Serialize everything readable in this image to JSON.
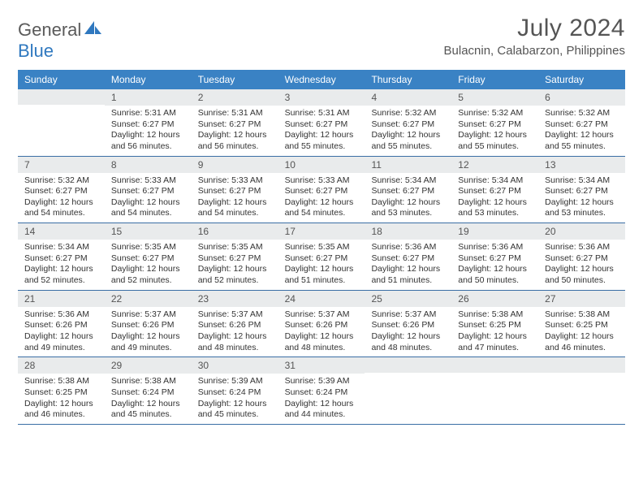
{
  "logo": {
    "text1": "General",
    "text2": "Blue"
  },
  "colors": {
    "header_bg": "#3a82c4",
    "header_text": "#ffffff",
    "daynum_bg": "#e9ebec",
    "border": "#3a6ea5",
    "logo_blue": "#2f78bf",
    "title_gray": "#555555"
  },
  "title": "July 2024",
  "location": "Bulacnin, Calabarzon, Philippines",
  "weekdays": [
    "Sunday",
    "Monday",
    "Tuesday",
    "Wednesday",
    "Thursday",
    "Friday",
    "Saturday"
  ],
  "first_weekday_index": 1,
  "days": [
    {
      "n": 1,
      "sunrise": "5:31 AM",
      "sunset": "6:27 PM",
      "daylight": "12 hours and 56 minutes."
    },
    {
      "n": 2,
      "sunrise": "5:31 AM",
      "sunset": "6:27 PM",
      "daylight": "12 hours and 56 minutes."
    },
    {
      "n": 3,
      "sunrise": "5:31 AM",
      "sunset": "6:27 PM",
      "daylight": "12 hours and 55 minutes."
    },
    {
      "n": 4,
      "sunrise": "5:32 AM",
      "sunset": "6:27 PM",
      "daylight": "12 hours and 55 minutes."
    },
    {
      "n": 5,
      "sunrise": "5:32 AM",
      "sunset": "6:27 PM",
      "daylight": "12 hours and 55 minutes."
    },
    {
      "n": 6,
      "sunrise": "5:32 AM",
      "sunset": "6:27 PM",
      "daylight": "12 hours and 55 minutes."
    },
    {
      "n": 7,
      "sunrise": "5:32 AM",
      "sunset": "6:27 PM",
      "daylight": "12 hours and 54 minutes."
    },
    {
      "n": 8,
      "sunrise": "5:33 AM",
      "sunset": "6:27 PM",
      "daylight": "12 hours and 54 minutes."
    },
    {
      "n": 9,
      "sunrise": "5:33 AM",
      "sunset": "6:27 PM",
      "daylight": "12 hours and 54 minutes."
    },
    {
      "n": 10,
      "sunrise": "5:33 AM",
      "sunset": "6:27 PM",
      "daylight": "12 hours and 54 minutes."
    },
    {
      "n": 11,
      "sunrise": "5:34 AM",
      "sunset": "6:27 PM",
      "daylight": "12 hours and 53 minutes."
    },
    {
      "n": 12,
      "sunrise": "5:34 AM",
      "sunset": "6:27 PM",
      "daylight": "12 hours and 53 minutes."
    },
    {
      "n": 13,
      "sunrise": "5:34 AM",
      "sunset": "6:27 PM",
      "daylight": "12 hours and 53 minutes."
    },
    {
      "n": 14,
      "sunrise": "5:34 AM",
      "sunset": "6:27 PM",
      "daylight": "12 hours and 52 minutes."
    },
    {
      "n": 15,
      "sunrise": "5:35 AM",
      "sunset": "6:27 PM",
      "daylight": "12 hours and 52 minutes."
    },
    {
      "n": 16,
      "sunrise": "5:35 AM",
      "sunset": "6:27 PM",
      "daylight": "12 hours and 52 minutes."
    },
    {
      "n": 17,
      "sunrise": "5:35 AM",
      "sunset": "6:27 PM",
      "daylight": "12 hours and 51 minutes."
    },
    {
      "n": 18,
      "sunrise": "5:36 AM",
      "sunset": "6:27 PM",
      "daylight": "12 hours and 51 minutes."
    },
    {
      "n": 19,
      "sunrise": "5:36 AM",
      "sunset": "6:27 PM",
      "daylight": "12 hours and 50 minutes."
    },
    {
      "n": 20,
      "sunrise": "5:36 AM",
      "sunset": "6:27 PM",
      "daylight": "12 hours and 50 minutes."
    },
    {
      "n": 21,
      "sunrise": "5:36 AM",
      "sunset": "6:26 PM",
      "daylight": "12 hours and 49 minutes."
    },
    {
      "n": 22,
      "sunrise": "5:37 AM",
      "sunset": "6:26 PM",
      "daylight": "12 hours and 49 minutes."
    },
    {
      "n": 23,
      "sunrise": "5:37 AM",
      "sunset": "6:26 PM",
      "daylight": "12 hours and 48 minutes."
    },
    {
      "n": 24,
      "sunrise": "5:37 AM",
      "sunset": "6:26 PM",
      "daylight": "12 hours and 48 minutes."
    },
    {
      "n": 25,
      "sunrise": "5:37 AM",
      "sunset": "6:26 PM",
      "daylight": "12 hours and 48 minutes."
    },
    {
      "n": 26,
      "sunrise": "5:38 AM",
      "sunset": "6:25 PM",
      "daylight": "12 hours and 47 minutes."
    },
    {
      "n": 27,
      "sunrise": "5:38 AM",
      "sunset": "6:25 PM",
      "daylight": "12 hours and 46 minutes."
    },
    {
      "n": 28,
      "sunrise": "5:38 AM",
      "sunset": "6:25 PM",
      "daylight": "12 hours and 46 minutes."
    },
    {
      "n": 29,
      "sunrise": "5:38 AM",
      "sunset": "6:24 PM",
      "daylight": "12 hours and 45 minutes."
    },
    {
      "n": 30,
      "sunrise": "5:39 AM",
      "sunset": "6:24 PM",
      "daylight": "12 hours and 45 minutes."
    },
    {
      "n": 31,
      "sunrise": "5:39 AM",
      "sunset": "6:24 PM",
      "daylight": "12 hours and 44 minutes."
    }
  ],
  "labels": {
    "sunrise": "Sunrise:",
    "sunset": "Sunset:",
    "daylight": "Daylight:"
  }
}
